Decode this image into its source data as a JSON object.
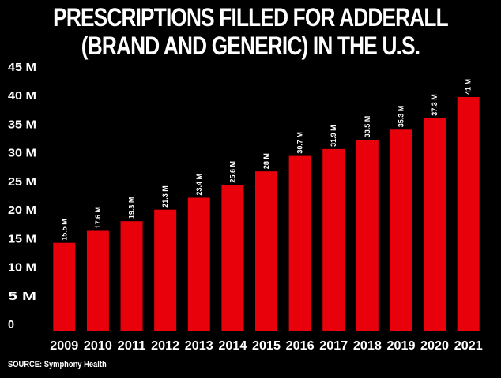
{
  "chart_data": {
    "type": "bar",
    "title_lines": [
      "PRESCRIPTIONS FILLED FOR ADDERALL",
      "(BRAND AND GENERIC) IN THE U.S."
    ],
    "categories": [
      "2009",
      "2010",
      "2011",
      "2012",
      "2013",
      "2014",
      "2015",
      "2016",
      "2017",
      "2018",
      "2019",
      "2020",
      "2021"
    ],
    "values": [
      15.5,
      17.6,
      19.3,
      21.3,
      23.4,
      25.6,
      28,
      30.7,
      31.9,
      33.5,
      35.3,
      37.3,
      41
    ],
    "data_labels": [
      "15.5 M",
      "17.6 M",
      "19.3 M",
      "21.3 M",
      "23.4 M",
      "25.6 M",
      "28 M",
      "30.7 M",
      "31.9 M",
      "33.5 M",
      "35.3 M",
      "37.3 M",
      "41 M"
    ],
    "y_ticks": [
      0,
      5,
      10,
      15,
      20,
      25,
      30,
      35,
      40,
      45
    ],
    "y_tick_labels": [
      "0",
      "5 M",
      "10 M",
      "15 M",
      "20 M",
      "25 M",
      "30 M",
      "35 M",
      "40 M",
      "45 M"
    ],
    "ylim": [
      0,
      45
    ],
    "grid": false,
    "xlabel": "",
    "ylabel": "",
    "bar_color": "#e8000b",
    "background_color": "#000000",
    "text_color": "#ffffff"
  },
  "source": "SOURCE: Symphony Health"
}
